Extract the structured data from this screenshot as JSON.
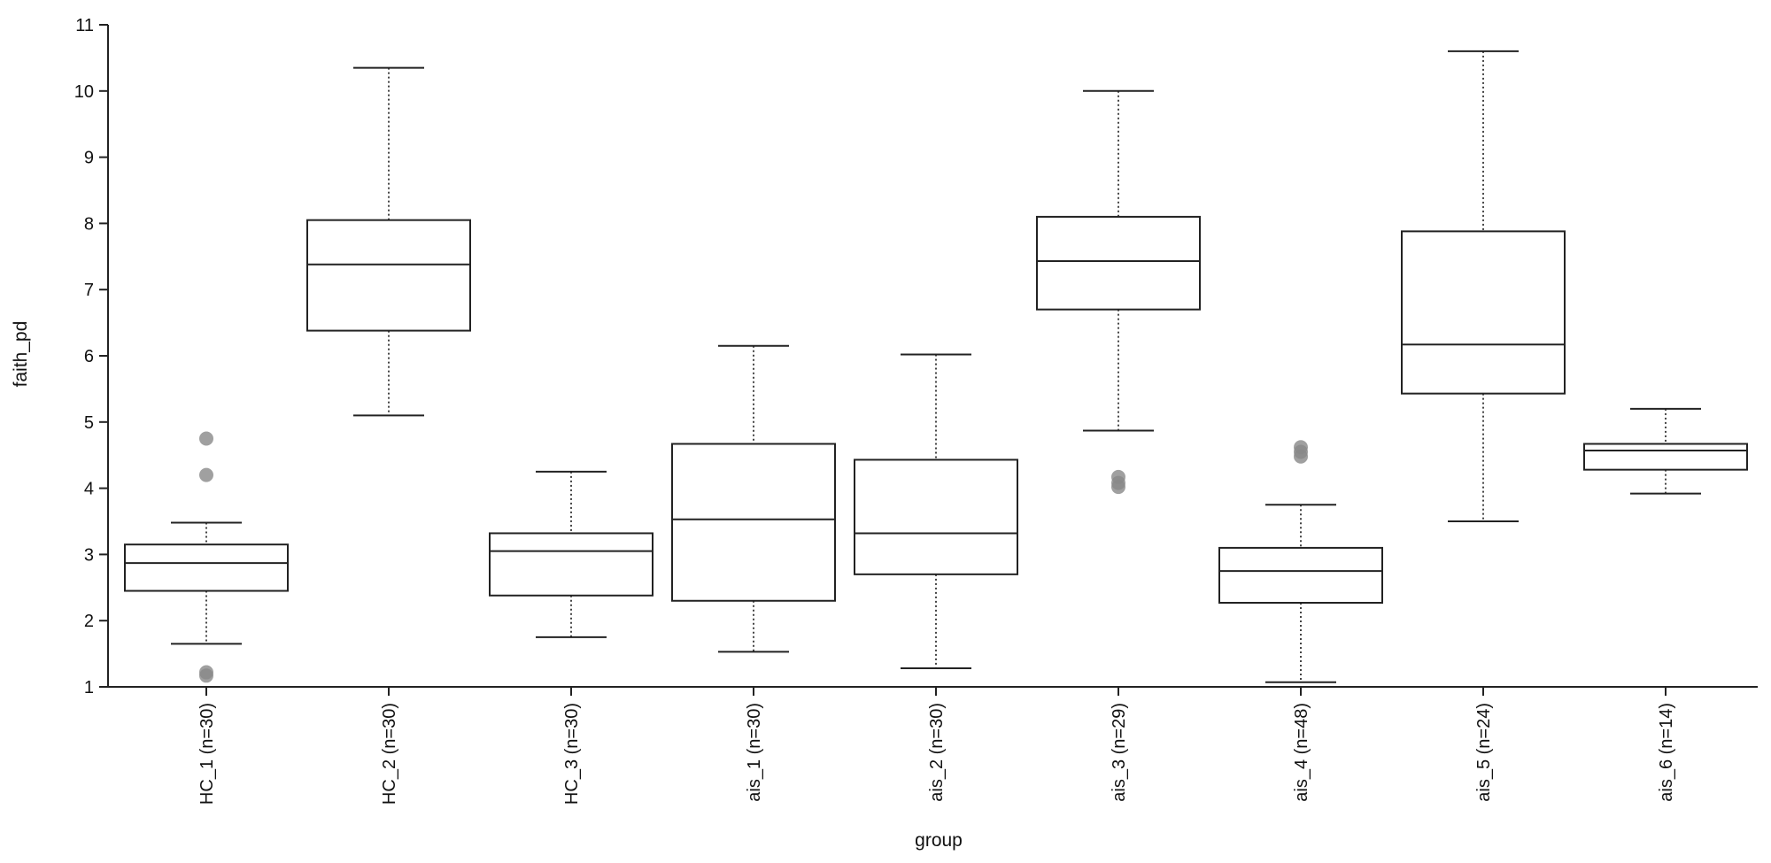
{
  "chart_data": {
    "type": "boxplot",
    "title": "",
    "xlabel": "group",
    "ylabel": "faith_pd",
    "ylim": [
      1,
      11
    ],
    "yticks": [
      "1",
      "2",
      "3",
      "4",
      "5",
      "6",
      "7",
      "8",
      "9",
      "10",
      "11"
    ],
    "categories": [
      "HC_1 (n=30)",
      "HC_2 (n=30)",
      "HC_3 (n=30)",
      "ais_1 (n=30)",
      "ais_2 (n=30)",
      "ais_3 (n=29)",
      "ais_4 (n=48)",
      "ais_5 (n=24)",
      "ais_6 (n=14)"
    ],
    "boxes": [
      {
        "group": "HC_1 (n=30)",
        "min": 1.65,
        "q1": 2.45,
        "median": 2.87,
        "q3": 3.15,
        "max": 3.48,
        "outliers": [
          4.75,
          4.2,
          1.22,
          1.17
        ]
      },
      {
        "group": "HC_2 (n=30)",
        "min": 5.1,
        "q1": 6.38,
        "median": 7.38,
        "q3": 8.05,
        "max": 10.35,
        "outliers": []
      },
      {
        "group": "HC_3 (n=30)",
        "min": 1.75,
        "q1": 2.38,
        "median": 3.05,
        "q3": 3.32,
        "max": 4.25,
        "outliers": []
      },
      {
        "group": "ais_1 (n=30)",
        "min": 1.53,
        "q1": 2.3,
        "median": 3.53,
        "q3": 4.67,
        "max": 6.15,
        "outliers": []
      },
      {
        "group": "ais_2 (n=30)",
        "min": 1.28,
        "q1": 2.7,
        "median": 3.32,
        "q3": 4.43,
        "max": 6.02,
        "outliers": []
      },
      {
        "group": "ais_3 (n=29)",
        "min": 4.87,
        "q1": 6.7,
        "median": 7.43,
        "q3": 8.1,
        "max": 10.0,
        "outliers": [
          4.17,
          4.08,
          4.02
        ]
      },
      {
        "group": "ais_4 (n=48)",
        "min": 1.07,
        "q1": 2.27,
        "median": 2.75,
        "q3": 3.1,
        "max": 3.75,
        "outliers": [
          4.62,
          4.55,
          4.48
        ]
      },
      {
        "group": "ais_5 (n=24)",
        "min": 3.5,
        "q1": 5.43,
        "median": 6.17,
        "q3": 7.88,
        "max": 10.6,
        "outliers": []
      },
      {
        "group": "ais_6 (n=14)",
        "min": 3.92,
        "q1": 4.28,
        "median": 4.57,
        "q3": 4.67,
        "max": 5.2,
        "outliers": []
      }
    ]
  }
}
